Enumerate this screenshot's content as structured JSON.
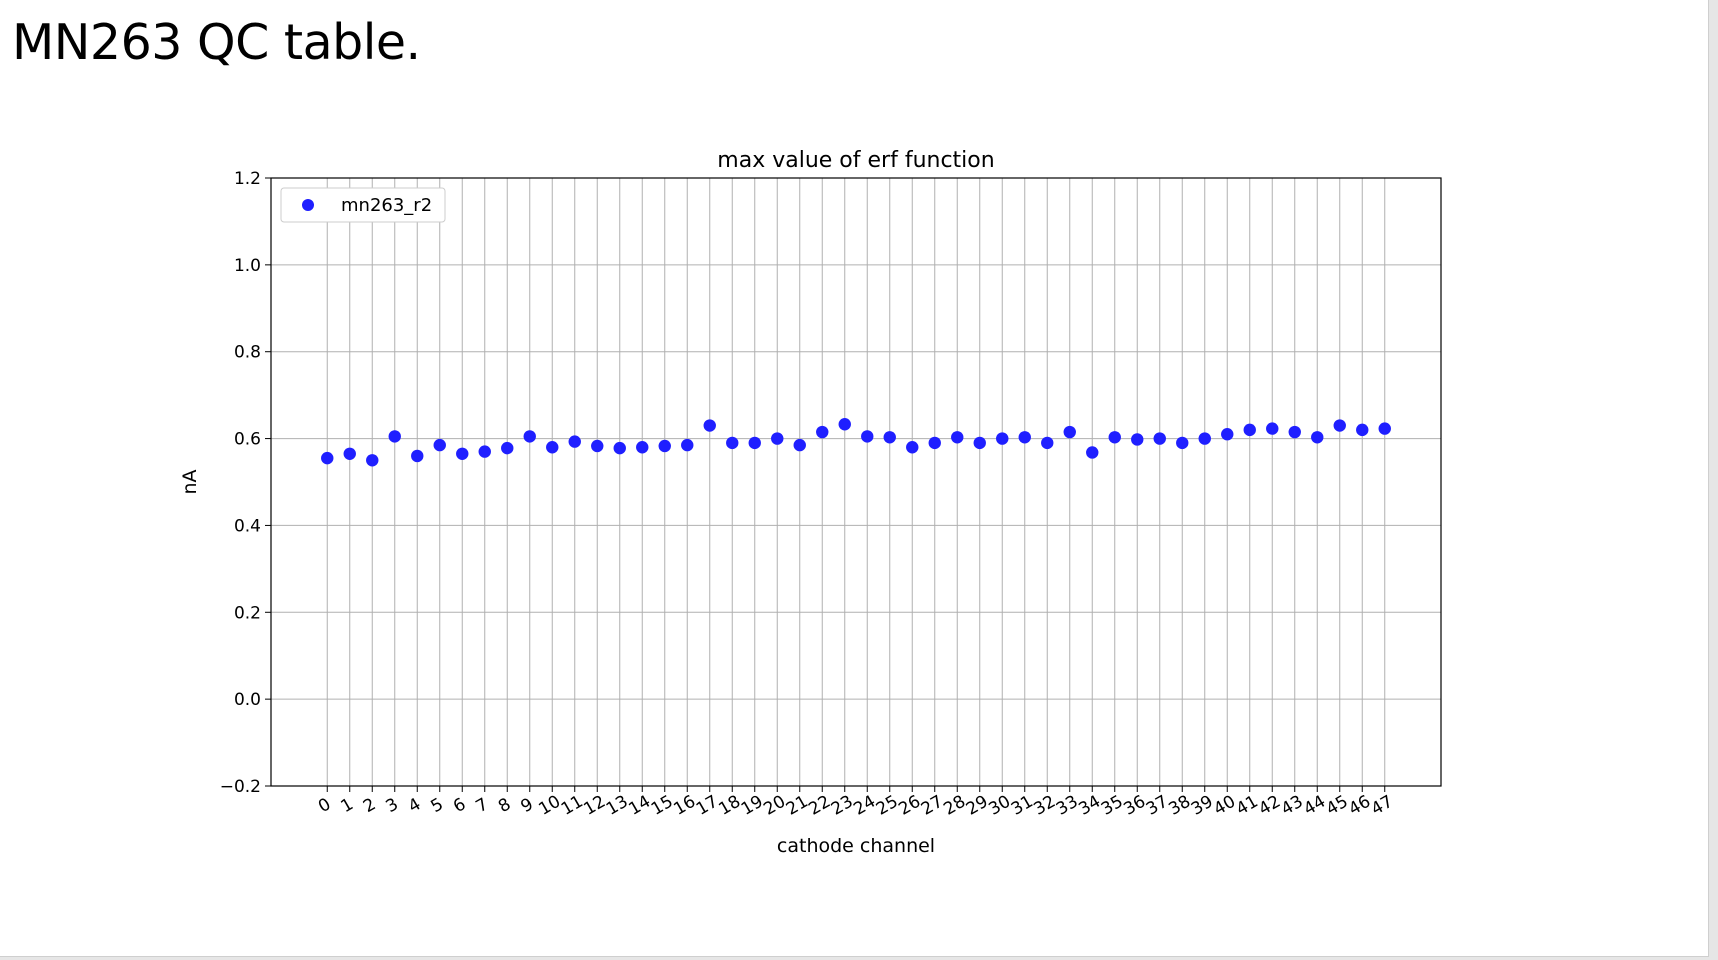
{
  "slide": {
    "title": "MN263 QC table."
  },
  "chart_data": {
    "type": "scatter",
    "title": "max value of erf function",
    "xlabel": "cathode channel",
    "ylabel": "nA",
    "xlim": [
      -2.5,
      49.5
    ],
    "ylim": [
      -0.2,
      1.2
    ],
    "yticks": [
      -0.2,
      0.0,
      0.2,
      0.4,
      0.6,
      0.8,
      1.0,
      1.2
    ],
    "ytick_labels": [
      "−0.2",
      "0.0",
      "0.2",
      "0.4",
      "0.6",
      "0.8",
      "1.0",
      "1.2"
    ],
    "xticks": [
      0,
      1,
      2,
      3,
      4,
      5,
      6,
      7,
      8,
      9,
      10,
      11,
      12,
      13,
      14,
      15,
      16,
      17,
      18,
      19,
      20,
      21,
      22,
      23,
      24,
      25,
      26,
      27,
      28,
      29,
      30,
      31,
      32,
      33,
      34,
      35,
      36,
      37,
      38,
      39,
      40,
      41,
      42,
      43,
      44,
      45,
      46,
      47
    ],
    "xtick_labels": [
      "0",
      "1",
      "2",
      "3",
      "4",
      "5",
      "6",
      "7",
      "8",
      "9",
      "10",
      "11",
      "12",
      "13",
      "14",
      "15",
      "16",
      "17",
      "18",
      "19",
      "20",
      "21",
      "22",
      "23",
      "24",
      "25",
      "26",
      "27",
      "28",
      "29",
      "30",
      "31",
      "32",
      "33",
      "34",
      "35",
      "36",
      "37",
      "38",
      "39",
      "40",
      "41",
      "42",
      "43",
      "44",
      "45",
      "46",
      "47"
    ],
    "grid": true,
    "legend_position": "top-left",
    "series": [
      {
        "name": "mn263_r2",
        "color": "#1f1fff",
        "x": [
          0,
          1,
          2,
          3,
          4,
          5,
          6,
          7,
          8,
          9,
          10,
          11,
          12,
          13,
          14,
          15,
          16,
          17,
          18,
          19,
          20,
          21,
          22,
          23,
          24,
          25,
          26,
          27,
          28,
          29,
          30,
          31,
          32,
          33,
          34,
          35,
          36,
          37,
          38,
          39,
          40,
          41,
          42,
          43,
          44,
          45,
          46,
          47
        ],
        "y": [
          0.555,
          0.565,
          0.55,
          0.605,
          0.56,
          0.585,
          0.565,
          0.57,
          0.578,
          0.605,
          0.58,
          0.593,
          0.583,
          0.578,
          0.58,
          0.583,
          0.585,
          0.63,
          0.59,
          0.59,
          0.6,
          0.585,
          0.615,
          0.633,
          0.605,
          0.603,
          0.58,
          0.59,
          0.603,
          0.59,
          0.6,
          0.603,
          0.59,
          0.615,
          0.568,
          0.603,
          0.598,
          0.6,
          0.59,
          0.6,
          0.61,
          0.62,
          0.623,
          0.615,
          0.603,
          0.63,
          0.62,
          0.623
        ]
      }
    ]
  }
}
